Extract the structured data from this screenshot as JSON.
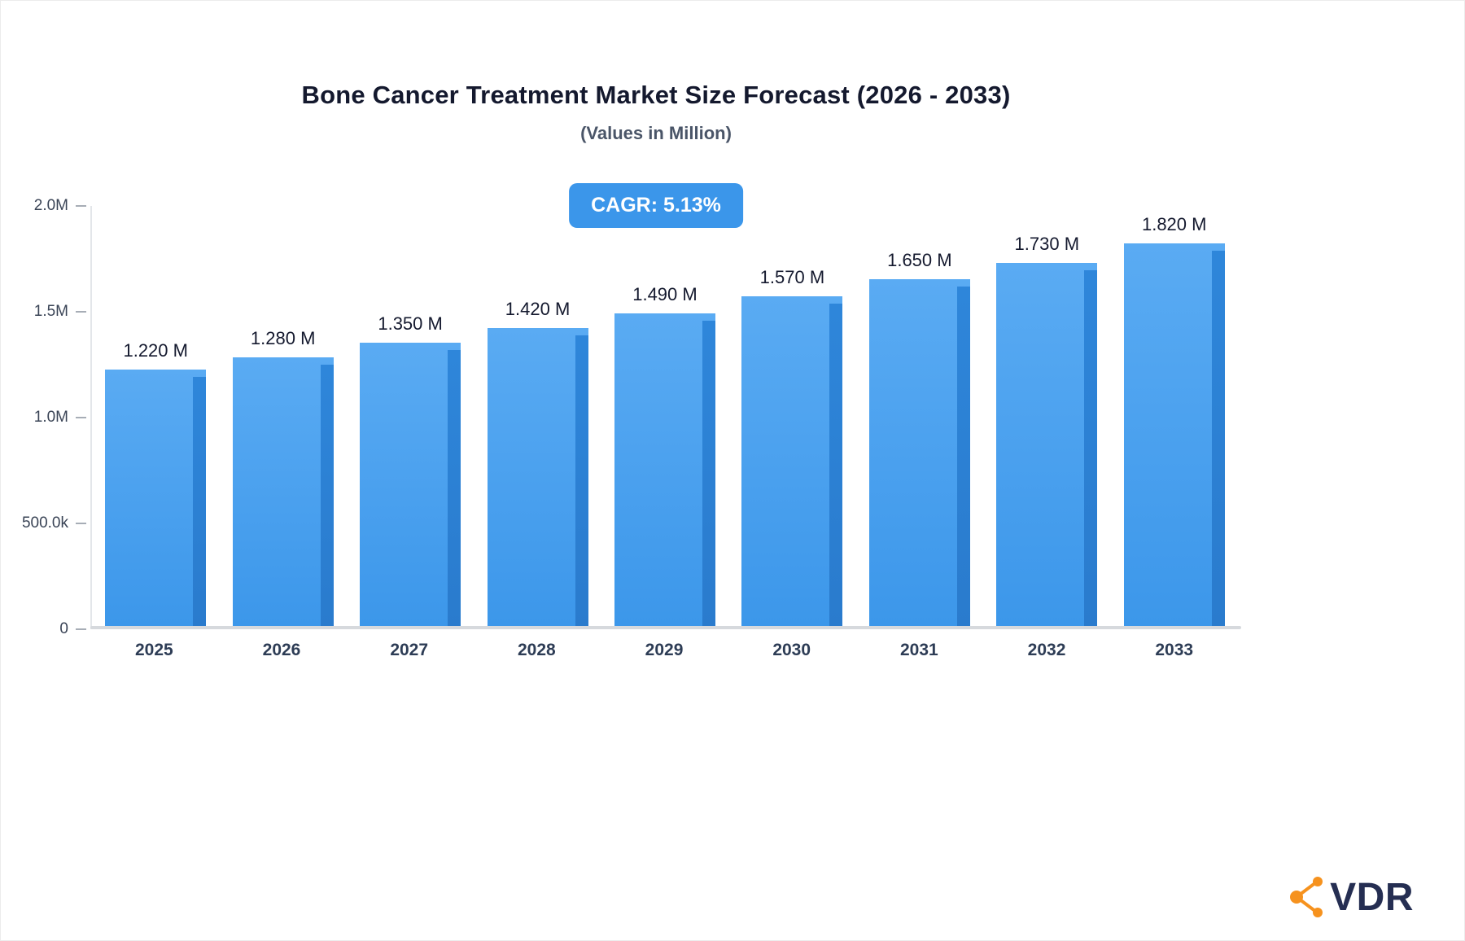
{
  "chart": {
    "title": "Bone Cancer Treatment Market Size Forecast (2026 - 2033)",
    "subtitle": "(Values in Million)",
    "badge_label": "CAGR: 5.13%"
  },
  "chart_data": {
    "type": "bar",
    "title": "Bone Cancer Treatment Market Size Forecast (2026 - 2033)",
    "subtitle": "(Values in Million)",
    "cagr": "5.13%",
    "categories": [
      "2025",
      "2026",
      "2027",
      "2028",
      "2029",
      "2030",
      "2031",
      "2032",
      "2033"
    ],
    "values": [
      1220000,
      1280000,
      1350000,
      1420000,
      1490000,
      1570000,
      1650000,
      1730000,
      1820000
    ],
    "value_labels": [
      "1.220 M",
      "1.280 M",
      "1.350 M",
      "1.420 M",
      "1.490 M",
      "1.570 M",
      "1.650 M",
      "1.730 M",
      "1.820 M"
    ],
    "xlabel": "",
    "ylabel": "",
    "ylim": [
      0,
      2000000
    ],
    "y_ticks": [
      {
        "value": 0,
        "label": "0"
      },
      {
        "value": 500000,
        "label": "500.0k"
      },
      {
        "value": 1000000,
        "label": "1.0M"
      },
      {
        "value": 1500000,
        "label": "1.5M"
      },
      {
        "value": 2000000,
        "label": "2.0M"
      }
    ],
    "grid": false,
    "legend": false
  },
  "colors": {
    "bar_top": "#5aabf3",
    "bar_bottom": "#3c97ea",
    "bar_side_top": "#2e86da",
    "bar_side_bottom": "#2a7bcd",
    "badge_bg": "#3b96ea",
    "logo_orange": "#f6921e",
    "logo_navy": "#252e52"
  },
  "logo": {
    "text": "VDR",
    "icon": "network-nodes-icon"
  }
}
